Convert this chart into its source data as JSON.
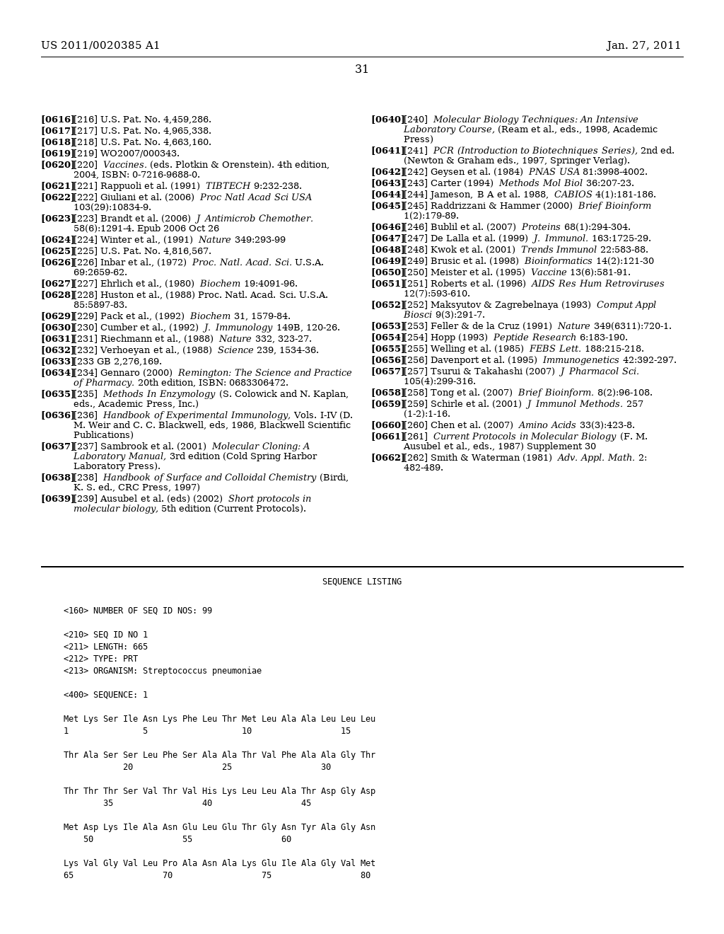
{
  "header_left": "US 2011/0020385 A1",
  "header_right": "Jan. 27, 2011",
  "page_number": "31",
  "background_color": "#ffffff",
  "left_refs": [
    {
      "tag": "[0616]",
      "plain": "[216] U.S. Pat. No. 4,459,286.",
      "wrap": 58
    },
    {
      "tag": "[0617]",
      "plain": "[217] U.S. Pat. No. 4,965,338.",
      "wrap": 58
    },
    {
      "tag": "[0618]",
      "plain": "[218] U.S. Pat. No. 4,663,160.",
      "wrap": 58
    },
    {
      "tag": "[0619]",
      "plain": "[219] WO2007/000343.",
      "wrap": 58
    },
    {
      "tag": "[0620]",
      "segments": [
        [
          "[220] ",
          "n"
        ],
        [
          "Vaccines.",
          "i"
        ],
        [
          " (eds. Plotkin & Orenstein). 4th edition, 2004, ISBN: 0-7216-9688-0.",
          "n"
        ]
      ],
      "wrap": 58
    },
    {
      "tag": "[0621]",
      "segments": [
        [
          "[221] Rappuoli et al. (1991) ",
          "n"
        ],
        [
          "TIBTECH",
          "i"
        ],
        [
          " 9:232-238.",
          "n"
        ]
      ],
      "wrap": 58
    },
    {
      "tag": "[0622]",
      "segments": [
        [
          "[222] Giuliani et al. (2006) ",
          "n"
        ],
        [
          "Proc Natl Acad Sci USA",
          "i"
        ],
        [
          " 103(29):10834-9.",
          "n"
        ]
      ],
      "wrap": 58
    },
    {
      "tag": "[0623]",
      "segments": [
        [
          "[223] Brandt et al. (2006) ",
          "n"
        ],
        [
          "J Antimicrob Chemother.",
          "i"
        ],
        [
          " 58(6):1291-4. Epub 2006 Oct 26",
          "n"
        ]
      ],
      "wrap": 58
    },
    {
      "tag": "[0624]",
      "segments": [
        [
          "[224] Winter et al., (1991) ",
          "n"
        ],
        [
          "Nature",
          "i"
        ],
        [
          " 349:293-99",
          "n"
        ]
      ],
      "wrap": 58
    },
    {
      "tag": "[0625]",
      "plain": "[225] U.S. Pat. No. 4,816,567.",
      "wrap": 58
    },
    {
      "tag": "[0626]",
      "segments": [
        [
          "[226] Inbar et al., (1972) ",
          "n"
        ],
        [
          "Proc. Natl. Acad. Sci.",
          "i"
        ],
        [
          " U.S.A. 69:2659-62.",
          "n"
        ]
      ],
      "wrap": 58
    },
    {
      "tag": "[0627]",
      "segments": [
        [
          "[227] Ehrlich et al., (1980) ",
          "n"
        ],
        [
          "Biochem",
          "i"
        ],
        [
          " 19:4091-96.",
          "n"
        ]
      ],
      "wrap": 58
    },
    {
      "tag": "[0628]",
      "plain": "[228] Huston et al., (1988) Proc. Natl. Acad. Sci. U.S.A. 85:5897-83.",
      "wrap": 58
    },
    {
      "tag": "[0629]",
      "segments": [
        [
          "[229] Pack et al., (1992) ",
          "n"
        ],
        [
          "Biochem",
          "i"
        ],
        [
          " 31, 1579-84.",
          "n"
        ]
      ],
      "wrap": 58
    },
    {
      "tag": "[0630]",
      "segments": [
        [
          "[230] Cumber et al., (1992) ",
          "n"
        ],
        [
          "J. Immunology",
          "i"
        ],
        [
          " 149B, 120-26.",
          "n"
        ]
      ],
      "wrap": 58
    },
    {
      "tag": "[0631]",
      "segments": [
        [
          "[231] Riechmann et al., (1988) ",
          "n"
        ],
        [
          "Nature",
          "i"
        ],
        [
          " 332, 323-27.",
          "n"
        ]
      ],
      "wrap": 58
    },
    {
      "tag": "[0632]",
      "segments": [
        [
          "[232] Verhoeyan et al., (1988) ",
          "n"
        ],
        [
          "Science",
          "i"
        ],
        [
          " 239, 1534-36.",
          "n"
        ]
      ],
      "wrap": 58
    },
    {
      "tag": "[0633]",
      "plain": "[233 GB 2,276,169.",
      "wrap": 58
    },
    {
      "tag": "[0634]",
      "segments": [
        [
          "[234] Gennaro (2000) ",
          "n"
        ],
        [
          "Remington: The Science and Practice of Pharmacy.",
          "i"
        ],
        [
          " 20th edition, ISBN: 0683306472.",
          "n"
        ]
      ],
      "wrap": 58
    },
    {
      "tag": "[0635]",
      "segments": [
        [
          "[235] ",
          "n"
        ],
        [
          "Methods In Enzymology",
          "i"
        ],
        [
          " (S. Colowick and N. Kaplan, eds., Academic Press, Inc.)",
          "n"
        ]
      ],
      "wrap": 58
    },
    {
      "tag": "[0636]",
      "segments": [
        [
          "[236] ",
          "n"
        ],
        [
          "Handbook of Experimental Immunology,",
          "i"
        ],
        [
          " Vols. I-IV (D. M. Weir and C. C. Blackwell, eds, 1986, Blackwell Scientific Publications)",
          "n"
        ]
      ],
      "wrap": 58
    },
    {
      "tag": "[0637]",
      "segments": [
        [
          "[237] Sambrook et al. (2001) ",
          "n"
        ],
        [
          "Molecular Cloning: A Laboratory Manual,",
          "i"
        ],
        [
          " 3rd edition (Cold Spring Harbor Laboratory Press).",
          "n"
        ]
      ],
      "wrap": 58
    },
    {
      "tag": "[0638]",
      "segments": [
        [
          "[238] ",
          "n"
        ],
        [
          "Handbook of Surface and Colloidal Chemistry",
          "i"
        ],
        [
          " (Birdi, K. S. ed., CRC Press, 1997)",
          "n"
        ]
      ],
      "wrap": 58
    },
    {
      "tag": "[0639]",
      "segments": [
        [
          "[239] Ausubel et al. (eds) (2002) ",
          "n"
        ],
        [
          "Short protocols in molecular biology,",
          "i"
        ],
        [
          " 5th edition (Current Protocols).",
          "n"
        ]
      ],
      "wrap": 58
    }
  ],
  "right_refs": [
    {
      "tag": "[0640]",
      "segments": [
        [
          "[240] ",
          "n"
        ],
        [
          "Molecular Biology Techniques: An Intensive Laboratory Course,",
          "i"
        ],
        [
          " (Ream et al., eds., 1998, Academic Press)",
          "n"
        ]
      ],
      "wrap": 55
    },
    {
      "tag": "[0641]",
      "segments": [
        [
          "[241] ",
          "n"
        ],
        [
          "PCR (Introduction to Biotechniques Series),",
          "i"
        ],
        [
          " 2nd ed. (Newton & Graham eds., 1997, Springer Verlag).",
          "n"
        ]
      ],
      "wrap": 55
    },
    {
      "tag": "[0642]",
      "segments": [
        [
          "[242] Geysen et al. (1984) ",
          "n"
        ],
        [
          "PNAS USA",
          "i"
        ],
        [
          " 81:3998-4002.",
          "n"
        ]
      ],
      "wrap": 55
    },
    {
      "tag": "[0643]",
      "segments": [
        [
          "[243] Carter (1994) ",
          "n"
        ],
        [
          "Methods Mol Biol",
          "i"
        ],
        [
          " 36:207-23.",
          "n"
        ]
      ],
      "wrap": 55
    },
    {
      "tag": "[0644]",
      "segments": [
        [
          "[244] Jameson, B A et al. 1988, ",
          "n"
        ],
        [
          "CABIOS",
          "i"
        ],
        [
          " 4(1):181-186.",
          "n"
        ]
      ],
      "wrap": 55
    },
    {
      "tag": "[0645]",
      "segments": [
        [
          "[245] Raddrizzani & Hammer (2000) ",
          "n"
        ],
        [
          "Brief Bioinform",
          "i"
        ],
        [
          " 1(2):179-89.",
          "n"
        ]
      ],
      "wrap": 55
    },
    {
      "tag": "[0646]",
      "segments": [
        [
          "[246] Bublil et al. (2007) ",
          "n"
        ],
        [
          "Proteins",
          "i"
        ],
        [
          " 68(1):294-304.",
          "n"
        ]
      ],
      "wrap": 55
    },
    {
      "tag": "[0647]",
      "segments": [
        [
          "[247] De Lalla et al. (1999) ",
          "n"
        ],
        [
          "J. Immunol.",
          "i"
        ],
        [
          " 163:1725-29.",
          "n"
        ]
      ],
      "wrap": 55
    },
    {
      "tag": "[0648]",
      "segments": [
        [
          "[248] Kwok et al. (2001) ",
          "n"
        ],
        [
          "Trends Immunol",
          "i"
        ],
        [
          " 22:583-88.",
          "n"
        ]
      ],
      "wrap": 55
    },
    {
      "tag": "[0649]",
      "segments": [
        [
          "[249] Brusic et al. (1998) ",
          "n"
        ],
        [
          "Bioinformatics",
          "i"
        ],
        [
          " 14(2):121-30",
          "n"
        ]
      ],
      "wrap": 55
    },
    {
      "tag": "[0650]",
      "segments": [
        [
          "[250] Meister et al. (1995) ",
          "n"
        ],
        [
          "Vaccine",
          "i"
        ],
        [
          " 13(6):581-91.",
          "n"
        ]
      ],
      "wrap": 55
    },
    {
      "tag": "[0651]",
      "segments": [
        [
          "[251] Roberts et al. (1996) ",
          "n"
        ],
        [
          "AIDS Res Hum Retroviruses",
          "i"
        ],
        [
          " 12(7):593-610.",
          "n"
        ]
      ],
      "wrap": 55
    },
    {
      "tag": "[0652]",
      "segments": [
        [
          "[252] Maksyutov & Zagrebelnaya (1993) ",
          "n"
        ],
        [
          "Comput Appl Biosci",
          "i"
        ],
        [
          " 9(3):291-7.",
          "n"
        ]
      ],
      "wrap": 55
    },
    {
      "tag": "[0653]",
      "segments": [
        [
          "[253] Feller & de la Cruz (1991) ",
          "n"
        ],
        [
          "Nature",
          "i"
        ],
        [
          " 349(6311):720-1.",
          "n"
        ]
      ],
      "wrap": 55
    },
    {
      "tag": "[0654]",
      "segments": [
        [
          "[254] Hopp (1993) ",
          "n"
        ],
        [
          "Peptide Research",
          "i"
        ],
        [
          " 6:183-190.",
          "n"
        ]
      ],
      "wrap": 55
    },
    {
      "tag": "[0655]",
      "segments": [
        [
          "[255] Welling et al. (1985) ",
          "n"
        ],
        [
          "FEBS Lett.",
          "i"
        ],
        [
          " 188:215-218.",
          "n"
        ]
      ],
      "wrap": 55
    },
    {
      "tag": "[0656]",
      "segments": [
        [
          "[256] Davenport et al. (1995) ",
          "n"
        ],
        [
          "Immunogenetics",
          "i"
        ],
        [
          " 42:392-297.",
          "n"
        ]
      ],
      "wrap": 55
    },
    {
      "tag": "[0657]",
      "segments": [
        [
          "[257] Tsurui & Takahashi (2007) ",
          "n"
        ],
        [
          "J Pharmacol Sci.",
          "i"
        ],
        [
          " 105(4):299-316.",
          "n"
        ]
      ],
      "wrap": 55
    },
    {
      "tag": "[0658]",
      "segments": [
        [
          "[258] Tong et al. (2007) ",
          "n"
        ],
        [
          "Brief Bioinform.",
          "i"
        ],
        [
          " 8(2):96-108.",
          "n"
        ]
      ],
      "wrap": 55
    },
    {
      "tag": "[0659]",
      "segments": [
        [
          "[259] Schirle et al. (2001) ",
          "n"
        ],
        [
          "J Immunol Methods.",
          "i"
        ],
        [
          " 257 (1-2):1-16.",
          "n"
        ]
      ],
      "wrap": 55
    },
    {
      "tag": "[0660]",
      "segments": [
        [
          "[260] Chen et al. (2007) ",
          "n"
        ],
        [
          "Amino Acids",
          "i"
        ],
        [
          " 33(3):423-8.",
          "n"
        ]
      ],
      "wrap": 55
    },
    {
      "tag": "[0661]",
      "segments": [
        [
          "[261] ",
          "n"
        ],
        [
          "Current Protocols in Molecular Biology",
          "i"
        ],
        [
          " (F. M. Ausubel et al., eds., 1987) Supplement 30",
          "n"
        ]
      ],
      "wrap": 55
    },
    {
      "tag": "[0662]",
      "segments": [
        [
          "[262] Smith & Waterman (1981) ",
          "n"
        ],
        [
          "Adv. Appl. Math.",
          "i"
        ],
        [
          " 2: 482-489.",
          "n"
        ]
      ],
      "wrap": 55
    }
  ],
  "seq_lines": [
    "",
    "<160> NUMBER OF SEQ ID NOS: 99",
    "",
    "<210> SEQ ID NO 1",
    "<211> LENGTH: 665",
    "<212> TYPE: PRT",
    "<213> ORGANISM: Streptococcus pneumoniae",
    "",
    "<400> SEQUENCE: 1",
    "",
    "Met Lys Ser Ile Asn Lys Phe Leu Thr Met Leu Ala Ala Leu Leu Leu",
    "1               5                   10                  15",
    "",
    "Thr Ala Ser Ser Leu Phe Ser Ala Ala Thr Val Phe Ala Ala Gly Thr",
    "            20                  25                  30",
    "",
    "Thr Thr Thr Ser Val Thr Val His Lys Leu Leu Ala Thr Asp Gly Asp",
    "        35                  40                  45",
    "",
    "Met Asp Lys Ile Ala Asn Glu Leu Glu Thr Gly Asn Tyr Ala Gly Asn",
    "    50                  55                  60",
    "",
    "Lys Val Gly Val Leu Pro Ala Asn Ala Lys Glu Ile Ala Gly Val Met",
    "65                  70                  75                  80"
  ]
}
